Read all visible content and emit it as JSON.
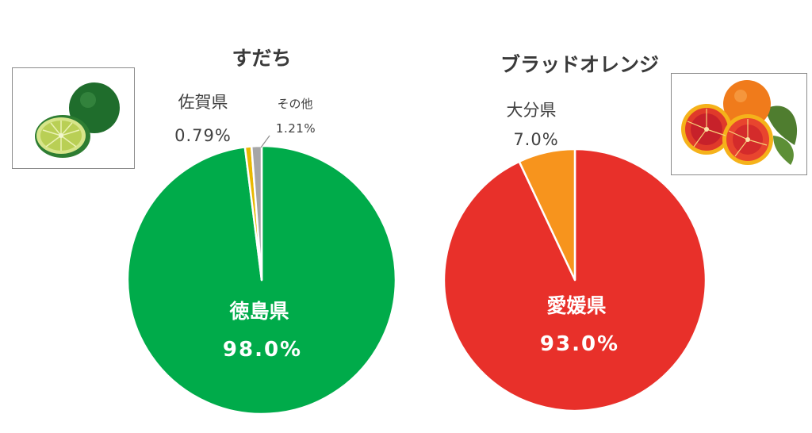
{
  "chart_data": [
    {
      "type": "pie",
      "title": "すだち",
      "slices": [
        {
          "label": "徳島県",
          "value": 98.0,
          "display": "98.0%",
          "color": "#00ab4a",
          "label_position": "inside"
        },
        {
          "label": "佐賀県",
          "value": 0.79,
          "display": "0.79%",
          "color": "#e8b800",
          "label_position": "outside"
        },
        {
          "label": "その他",
          "value": 1.21,
          "display": "1.21%",
          "color": "#a6a6a6",
          "label_position": "outside-leader"
        }
      ],
      "start_angle_deg": 0,
      "direction": "clockwise",
      "image": "sudachi-photo"
    },
    {
      "type": "pie",
      "title": "ブラッドオレンジ",
      "slices": [
        {
          "label": "愛媛県",
          "value": 93.0,
          "display": "93.0%",
          "color": "#e8302a",
          "label_position": "inside"
        },
        {
          "label": "大分県",
          "value": 7.0,
          "display": "7.0%",
          "color": "#f7941d",
          "label_position": "outside"
        }
      ],
      "start_angle_deg": 0,
      "direction": "clockwise",
      "image": "blood-orange-photo"
    }
  ]
}
